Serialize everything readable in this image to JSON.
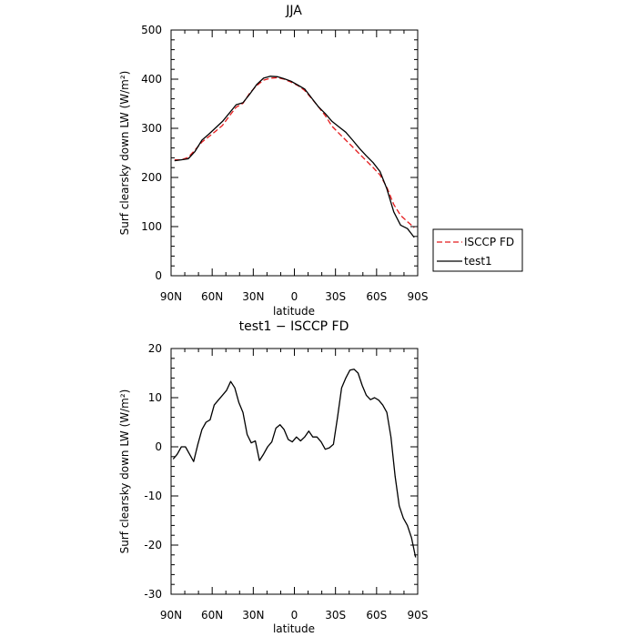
{
  "chart_data": [
    {
      "type": "line",
      "title": "JJA",
      "xlabel": "latitude",
      "ylabel": "Surf clearsky down LW (W/m²)",
      "xlim": [
        90,
        -90
      ],
      "ylim": [
        0,
        500
      ],
      "xticks": [
        {
          "value": 90,
          "label": "90N"
        },
        {
          "value": 60,
          "label": "60N"
        },
        {
          "value": 30,
          "label": "30N"
        },
        {
          "value": 0,
          "label": "0"
        },
        {
          "value": -30,
          "label": "30S"
        },
        {
          "value": -60,
          "label": "60S"
        },
        {
          "value": -90,
          "label": "90S"
        }
      ],
      "yticks": [
        0,
        100,
        200,
        300,
        400,
        500
      ],
      "legend_position": "right",
      "series": [
        {
          "name": "ISCCP FD",
          "color": "#e41a1c",
          "dash": "dashed",
          "x": [
            87.5,
            82.5,
            77.5,
            72.5,
            67.5,
            62.5,
            57.5,
            52.5,
            47.5,
            42.5,
            37.5,
            32.5,
            27.5,
            22.5,
            17.5,
            12.5,
            7.5,
            2.5,
            -2.5,
            -7.5,
            -12.5,
            -17.5,
            -22.5,
            -27.5,
            -32.5,
            -37.5,
            -42.5,
            -47.5,
            -52.5,
            -57.5,
            -62.5,
            -67.5,
            -72.5,
            -77.5,
            -82.5,
            -87.5
          ],
          "y": [
            236,
            236,
            241,
            256,
            272,
            283,
            294,
            306,
            325,
            343,
            351,
            372,
            387,
            398,
            402,
            403,
            400,
            394,
            387,
            377,
            361,
            344,
            326,
            304,
            290,
            276,
            262,
            248,
            234,
            220,
            205,
            180,
            145,
            123,
            110,
            98
          ]
        },
        {
          "name": "test1",
          "color": "#000000",
          "dash": "solid",
          "x": [
            87.5,
            82.5,
            77.5,
            72.5,
            67.5,
            62.5,
            57.5,
            52.5,
            47.5,
            42.5,
            37.5,
            32.5,
            27.5,
            22.5,
            17.5,
            12.5,
            7.5,
            2.5,
            -2.5,
            -7.5,
            -12.5,
            -17.5,
            -22.5,
            -27.5,
            -32.5,
            -37.5,
            -42.5,
            -47.5,
            -52.5,
            -57.5,
            -62.5,
            -67.5,
            -72.5,
            -77.5,
            -82.5,
            -87.5
          ],
          "y": [
            234,
            236,
            238,
            253,
            276,
            288,
            301,
            314,
            331,
            348,
            352,
            370,
            389,
            402,
            406,
            405,
            401,
            396,
            388,
            380,
            362,
            344,
            330,
            314,
            303,
            292,
            276,
            259,
            244,
            230,
            212,
            177,
            130,
            103,
            96,
            78
          ]
        }
      ]
    },
    {
      "type": "line",
      "title": "test1 − ISCCP FD",
      "xlabel": "latitude",
      "ylabel": "Surf clearsky down LW (W/m²)",
      "xlim": [
        90,
        -90
      ],
      "ylim": [
        -30,
        20
      ],
      "xticks": [
        {
          "value": 90,
          "label": "90N"
        },
        {
          "value": 60,
          "label": "60N"
        },
        {
          "value": 30,
          "label": "30N"
        },
        {
          "value": 0,
          "label": "0"
        },
        {
          "value": -30,
          "label": "30S"
        },
        {
          "value": -60,
          "label": "60S"
        },
        {
          "value": -90,
          "label": "90S"
        }
      ],
      "yticks": [
        -30,
        -20,
        -10,
        0,
        10,
        20
      ],
      "series": [
        {
          "color": "#000000",
          "dash": "solid",
          "x": [
            88.5,
            85.5,
            82.5,
            79.5,
            76.5,
            73.5,
            70.5,
            67.5,
            64.5,
            61.5,
            58.5,
            55.5,
            52.5,
            49.5,
            46.5,
            43.5,
            40.5,
            37.5,
            34.5,
            31.5,
            28.5,
            25.5,
            22.5,
            19.5,
            16.5,
            13.5,
            10.5,
            7.5,
            4.5,
            1.5,
            -1.5,
            -4.5,
            -7.5,
            -10.5,
            -13.5,
            -16.5,
            -19.5,
            -22.5,
            -25.5,
            -28.5,
            -31.5,
            -34.5,
            -37.5,
            -40.5,
            -43.5,
            -46.5,
            -49.5,
            -52.5,
            -55.5,
            -58.5,
            -61.5,
            -64.5,
            -67.5,
            -70.5,
            -73.5,
            -76.5,
            -79.5,
            -82.5,
            -85.5,
            -88.5
          ],
          "y": [
            -2.5,
            -1.5,
            0,
            0,
            -1.5,
            -3,
            0.5,
            3.5,
            5,
            5.5,
            8.5,
            9.5,
            10.5,
            11.5,
            13.3,
            12,
            9,
            7,
            2.5,
            0.8,
            1.2,
            -2.8,
            -1.5,
            0,
            1,
            3.8,
            4.5,
            3.5,
            1.5,
            1,
            2,
            1.2,
            2,
            3.2,
            2,
            2,
            1,
            -0.5,
            -0.2,
            0.5,
            6,
            12,
            14,
            15.6,
            15.8,
            15,
            12.5,
            10.5,
            9.6,
            10,
            9.5,
            8.5,
            7,
            2,
            -6,
            -12,
            -14.5,
            -16,
            -18.5,
            -22.5
          ]
        }
      ]
    }
  ]
}
